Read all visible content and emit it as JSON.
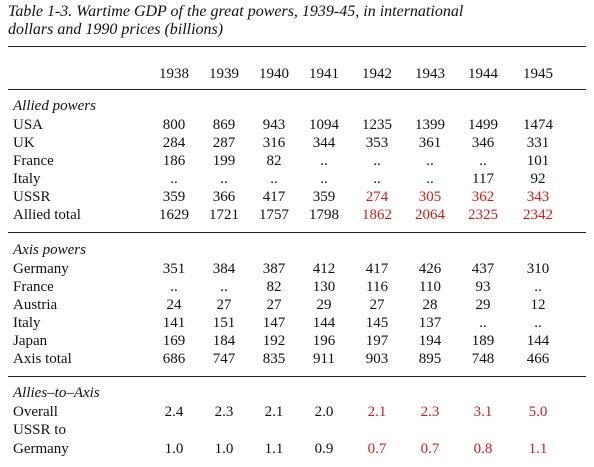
{
  "caption": {
    "line1": "Table 1-3. Wartime GDP of the great powers, 1939-45, in international",
    "line2": "dollars and 1990 prices (billions)"
  },
  "years": [
    "1938",
    "1939",
    "1940",
    "1941",
    "1942",
    "1943",
    "1944",
    "1945"
  ],
  "highlight_color": "#c8201c",
  "sections": [
    {
      "title": "Allied powers",
      "rows": [
        {
          "label": "USA",
          "values": [
            "800",
            "869",
            "943",
            "1094",
            "1235",
            "1399",
            "1499",
            "1474"
          ]
        },
        {
          "label": "UK",
          "values": [
            "284",
            "287",
            "316",
            "344",
            "353",
            "361",
            "346",
            "331"
          ]
        },
        {
          "label": "France",
          "values": [
            "186",
            "199",
            "82",
            "..",
            "..",
            "..",
            "..",
            "101"
          ]
        },
        {
          "label": "Italy",
          "values": [
            "..",
            "..",
            "..",
            "..",
            "..",
            "..",
            "117",
            "92"
          ]
        },
        {
          "label": "USSR",
          "values": [
            "359",
            "366",
            "417",
            "359",
            "274",
            "305",
            "362",
            "343"
          ]
        },
        {
          "label": "Allied total",
          "values": [
            "1629",
            "1721",
            "1757",
            "1798",
            "1862",
            "2064",
            "2325",
            "2342"
          ]
        }
      ]
    },
    {
      "title": "Axis powers",
      "rows": [
        {
          "label": "Germany",
          "values": [
            "351",
            "384",
            "387",
            "412",
            "417",
            "426",
            "437",
            "310"
          ]
        },
        {
          "label": "France",
          "values": [
            "..",
            "..",
            "82",
            "130",
            "116",
            "110",
            "93",
            ".."
          ]
        },
        {
          "label": "Austria",
          "values": [
            "24",
            "27",
            "27",
            "29",
            "27",
            "28",
            "29",
            "12"
          ]
        },
        {
          "label": "Italy",
          "values": [
            "141",
            "151",
            "147",
            "144",
            "145",
            "137",
            "..",
            ".."
          ]
        },
        {
          "label": "Japan",
          "values": [
            "169",
            "184",
            "192",
            "196",
            "197",
            "194",
            "189",
            "144"
          ]
        },
        {
          "label": "Axis total",
          "values": [
            "686",
            "747",
            "835",
            "911",
            "903",
            "895",
            "748",
            "466"
          ]
        }
      ]
    },
    {
      "title": "Allies–to–Axis",
      "rows": [
        {
          "label": "Overall",
          "values": [
            "2.4",
            "2.3",
            "2.1",
            "2.0",
            "2.1",
            "2.3",
            "3.1",
            "5.0"
          ]
        },
        {
          "label": "USSR to",
          "values": [
            "",
            "",
            "",
            "",
            "",
            "",
            "",
            ""
          ]
        },
        {
          "label": "Germany",
          "values": [
            "1.0",
            "1.0",
            "1.1",
            "0.9",
            "0.7",
            "0.7",
            "0.8",
            "1.1"
          ]
        }
      ]
    }
  ]
}
